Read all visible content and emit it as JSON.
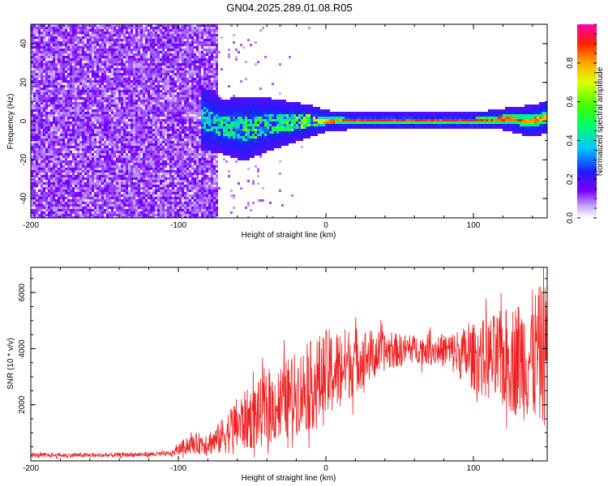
{
  "title": "GN04.2025.289.01.08.R05",
  "colors": {
    "snr_line": "#ee2222",
    "spectrogram_low": "#7a00ff",
    "spectrogram_high": "#ff0000",
    "axis": "#000000"
  },
  "chart_data": [
    {
      "type": "heatmap",
      "name": "spectrogram",
      "xlabel": "Height of straight line (km)",
      "ylabel": "Frequency (Hz)",
      "xlim": [
        -200,
        150
      ],
      "ylim": [
        -50,
        50
      ],
      "xticks": [
        -200,
        -100,
        0,
        100
      ],
      "xtick_labels": [
        "-200",
        "-100",
        "0",
        "100"
      ],
      "yticks": [
        -40,
        -20,
        0,
        20,
        40
      ],
      "ytick_labels": [
        "-40",
        "-20",
        "0",
        "20",
        "40"
      ],
      "noise_region": {
        "x_from": -200,
        "x_to": -73,
        "typical_amplitude": 0.15
      },
      "signal_track": [
        {
          "x": -85,
          "freq": 2,
          "spread": 6,
          "amplitude": 0.3
        },
        {
          "x": -70,
          "freq": -3,
          "spread": 5,
          "amplitude": 0.45
        },
        {
          "x": -55,
          "freq": -4,
          "spread": 6,
          "amplitude": 0.5
        },
        {
          "x": -40,
          "freq": -2,
          "spread": 5,
          "amplitude": 0.5
        },
        {
          "x": -25,
          "freq": -1,
          "spread": 4,
          "amplitude": 0.55
        },
        {
          "x": -10,
          "freq": 0,
          "spread": 3,
          "amplitude": 0.6
        },
        {
          "x": 0,
          "freq": 0,
          "spread": 2,
          "amplitude": 0.85
        },
        {
          "x": 20,
          "freq": 0,
          "spread": 1.5,
          "amplitude": 1.0
        },
        {
          "x": 60,
          "freq": 0,
          "spread": 1.5,
          "amplitude": 1.0
        },
        {
          "x": 100,
          "freq": 0,
          "spread": 1.5,
          "amplitude": 1.0
        },
        {
          "x": 120,
          "freq": 1,
          "spread": 2,
          "amplitude": 0.95
        },
        {
          "x": 140,
          "freq": 0,
          "spread": 3,
          "amplitude": 0.9
        },
        {
          "x": 150,
          "freq": 2,
          "spread": 3,
          "amplitude": 0.85
        }
      ]
    },
    {
      "type": "colorbar",
      "name": "amplitude-colorbar",
      "label": "Normalized spectral amplitude",
      "range": [
        0.0,
        1.0
      ],
      "ticks": [
        0.0,
        0.2,
        0.4,
        0.6,
        0.8
      ],
      "tick_labels": [
        "0.0",
        "0.2",
        "0.4",
        "0.6",
        "0.8"
      ]
    },
    {
      "type": "line",
      "name": "snr",
      "xlabel": "Height of straight line (km)",
      "ylabel": "SNR (10 * v/v)",
      "xlim": [
        -200,
        150
      ],
      "ylim": [
        0,
        6900
      ],
      "xticks": [
        -200,
        -100,
        0,
        100
      ],
      "xtick_labels": [
        "-200",
        "-100",
        "0",
        "100"
      ],
      "yticks": [
        2000,
        4000,
        6000
      ],
      "ytick_labels": [
        "2000",
        "4000",
        "6000"
      ],
      "series": [
        {
          "name": "SNR",
          "envelope": [
            {
              "x": -200,
              "mean": 200,
              "amp": 80
            },
            {
              "x": -150,
              "mean": 200,
              "amp": 80
            },
            {
              "x": -105,
              "mean": 250,
              "amp": 90
            },
            {
              "x": -95,
              "mean": 550,
              "amp": 300
            },
            {
              "x": -75,
              "mean": 700,
              "amp": 500
            },
            {
              "x": -60,
              "mean": 1300,
              "amp": 1000
            },
            {
              "x": -40,
              "mean": 1800,
              "amp": 1300
            },
            {
              "x": -20,
              "mean": 2400,
              "amp": 1500
            },
            {
              "x": 0,
              "mean": 3000,
              "amp": 1700
            },
            {
              "x": 20,
              "mean": 3600,
              "amp": 1200
            },
            {
              "x": 40,
              "mean": 3900,
              "amp": 700
            },
            {
              "x": 60,
              "mean": 4000,
              "amp": 500
            },
            {
              "x": 80,
              "mean": 3950,
              "amp": 600
            },
            {
              "x": 100,
              "mean": 3700,
              "amp": 1200
            },
            {
              "x": 120,
              "mean": 3600,
              "amp": 1800
            },
            {
              "x": 140,
              "mean": 3700,
              "amp": 2400
            },
            {
              "x": 150,
              "mean": 3800,
              "amp": 2600
            }
          ]
        }
      ]
    }
  ]
}
